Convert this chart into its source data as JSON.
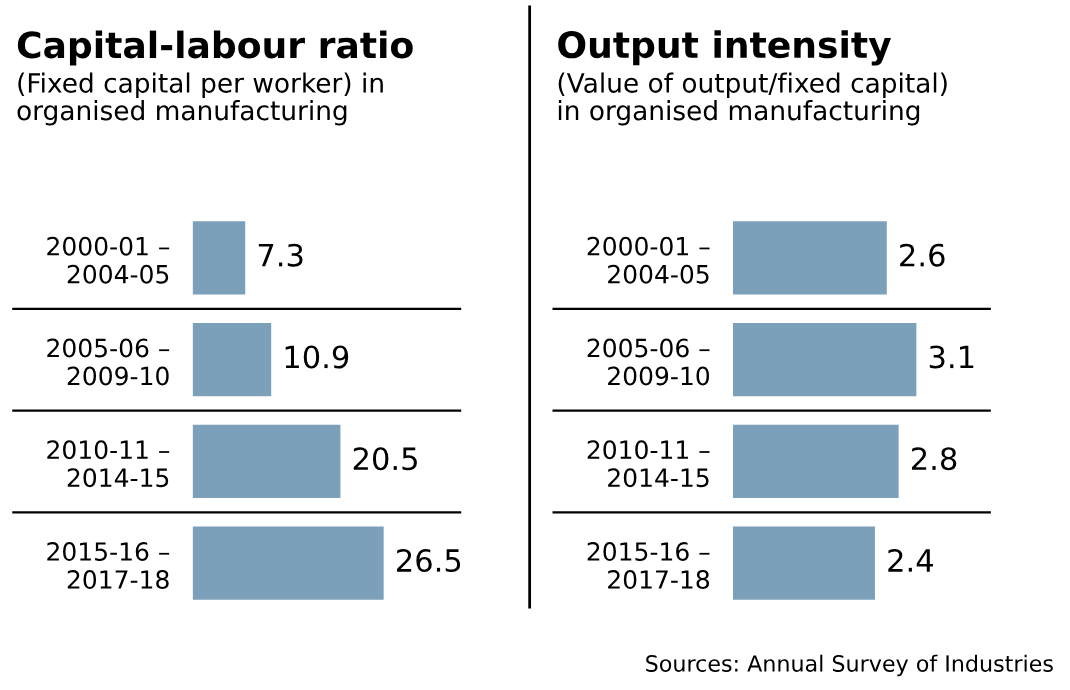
{
  "chart_data": [
    {
      "type": "bar",
      "orientation": "horizontal",
      "title": "Capital-labour ratio",
      "subtitle": "(Fixed capital per worker) in\norganised manufacturing",
      "categories": [
        "2000-01 –\n2004-05",
        "2005-06 –\n2009-10",
        "2010-11 –\n2014-15",
        "2015-16 –\n2017-18"
      ],
      "values": [
        7.3,
        10.9,
        20.5,
        26.5
      ],
      "color": "#7ca0ba",
      "data_labels": true,
      "tick_labels": "y"
    },
    {
      "type": "bar",
      "orientation": "horizontal",
      "title": "Output intensity",
      "subtitle": "(Value of output/fixed capital)\nin organised manufacturing",
      "categories": [
        "2000-01 –\n2004-05",
        "2005-06 –\n2009-10",
        "2010-11 –\n2014-15",
        "2015-16 –\n2017-18"
      ],
      "values": [
        2.6,
        3.1,
        2.8,
        2.4
      ],
      "color": "#7ca0ba",
      "data_labels": true,
      "tick_labels": "y",
      "annotations": [
        "Sources: Annual Survey of Industries"
      ]
    }
  ]
}
